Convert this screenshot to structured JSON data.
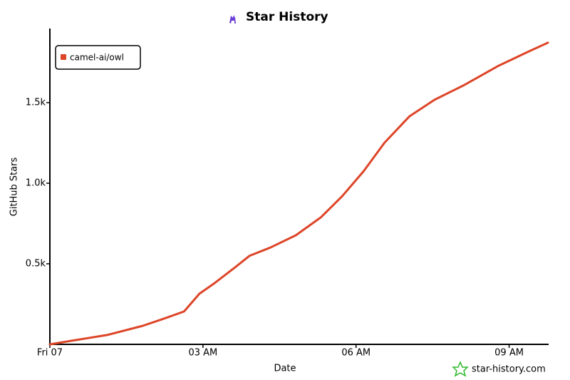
{
  "chart_data": {
    "type": "line",
    "title": "Star History",
    "xlabel": "Date",
    "ylabel": "GitHub Stars",
    "watermark": "star-history.com",
    "x": [
      0,
      0.42,
      1.12,
      1.82,
      2.23,
      2.63,
      2.93,
      3.21,
      3.63,
      3.91,
      4.33,
      4.82,
      5.31,
      5.73,
      6.15,
      6.56,
      7.05,
      7.54,
      8.1,
      8.8,
      9.36,
      9.76
    ],
    "series": [
      {
        "name": "camel-ai/owl",
        "color": "#dd4528",
        "values": [
          0,
          22,
          58,
          115,
          159,
          204,
          314,
          376,
          478,
          549,
          602,
          677,
          788,
          920,
          1075,
          1252,
          1416,
          1518,
          1606,
          1730,
          1814,
          1872
        ]
      }
    ],
    "xlim": [
      0,
      9.76
    ],
    "xticks": [
      {
        "value": 0,
        "label": "Fri 07"
      },
      {
        "value": 3,
        "label": "03 AM"
      },
      {
        "value": 6,
        "label": "06 AM"
      },
      {
        "value": 9,
        "label": "09 AM"
      }
    ],
    "ylim": [
      0,
      1960
    ],
    "yticks": [
      {
        "value": 500,
        "label": "0.5k"
      },
      {
        "value": 1000,
        "label": "1.0k"
      },
      {
        "value": 1500,
        "label": "1.5k"
      }
    ],
    "legend": "top-left"
  }
}
